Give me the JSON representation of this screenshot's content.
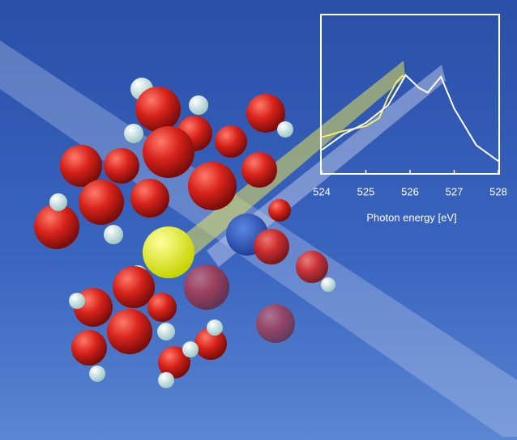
{
  "chart_data": {
    "type": "line",
    "xlabel": "Photon energy [eV]",
    "xlim": [
      524,
      528
    ],
    "xticks": [
      524,
      525,
      526,
      527,
      528
    ],
    "ylim": [
      0,
      1
    ],
    "series": [
      {
        "color": "#f2f06a",
        "x": [
          524,
          524.5,
          525,
          525.3,
          525.5,
          525.7,
          525.85
        ],
        "values": [
          0.23,
          0.27,
          0.3,
          0.35,
          0.48,
          0.58,
          0.62
        ]
      },
      {
        "color": "#ffffff",
        "x": [
          524,
          524.5,
          525,
          525.5,
          525.9,
          526.2,
          526.4,
          526.7,
          527,
          527.5,
          528
        ],
        "values": [
          0.15,
          0.25,
          0.32,
          0.43,
          0.62,
          0.54,
          0.51,
          0.61,
          0.41,
          0.18,
          0.08
        ]
      }
    ]
  }
}
